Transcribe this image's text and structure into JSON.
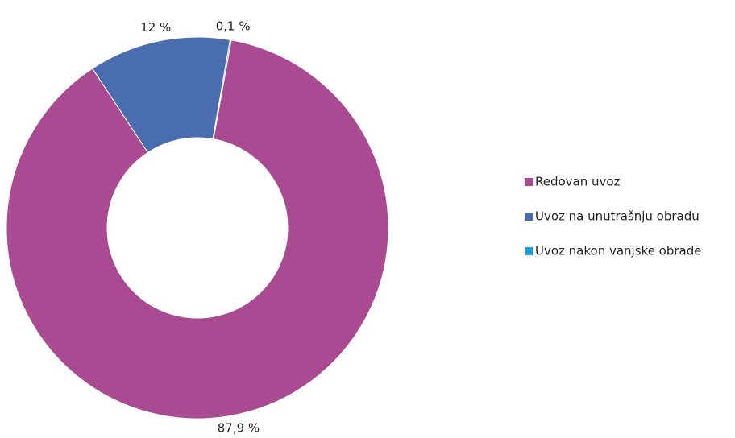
{
  "chart_data": {
    "type": "donut",
    "categories": [
      "Redovan uvoz",
      "Uvoz na unutrašnju obradu",
      "Uvoz nakon vanjske obrade"
    ],
    "values": [
      87.9,
      12,
      0.1
    ],
    "value_labels": [
      "87,9 %",
      "12 %",
      "0,1 %"
    ],
    "colors": [
      "#a94a93",
      "#4a6db0",
      "#1e9ad6"
    ],
    "legend": "right"
  }
}
